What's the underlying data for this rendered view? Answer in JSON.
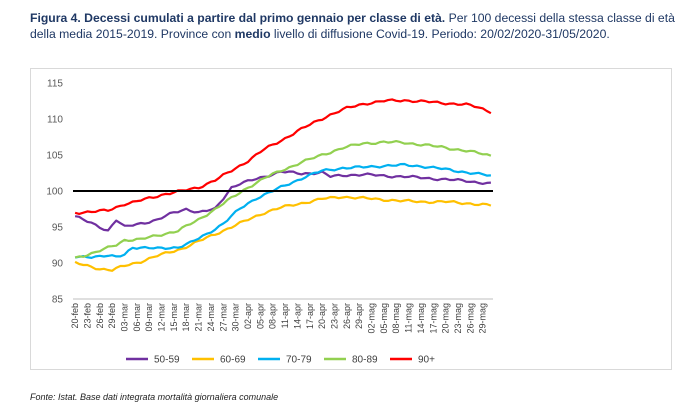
{
  "caption": {
    "figure_label": "Figura 4. Decessi cumulati a partire dal primo gennaio per classe di età.",
    "text_before_bold": " Per 100 decessi della stessa classe di età della media 2015-2019. Province con ",
    "bold_word": "medio",
    "text_after_bold": " livello di diffusione Covid-19. Periodo: 20/02/2020-31/05/2020."
  },
  "source": "Fonte: Istat. Base dati integrata mortalità giornaliera comunale",
  "chart_data": {
    "type": "line",
    "title": "",
    "xlabel": "",
    "ylabel": "",
    "ylim": [
      85,
      115
    ],
    "yticks": [
      85,
      90,
      95,
      100,
      105,
      110,
      115
    ],
    "x_tick_labels": [
      "20-feb",
      "23-feb",
      "26-feb",
      "29-feb",
      "03-mar",
      "06-mar",
      "09-mar",
      "12-mar",
      "15-mar",
      "18-mar",
      "21-mar",
      "24-mar",
      "27-mar",
      "30-mar",
      "02-apr",
      "05-apr",
      "08-apr",
      "11-apr",
      "14-apr",
      "17-apr",
      "20-apr",
      "23-apr",
      "26-apr",
      "29-apr",
      "02-mag",
      "05-mag",
      "08-mag",
      "11-mag",
      "14-mag",
      "17-mag",
      "20-mag",
      "23-mag",
      "26-mag",
      "29-mag"
    ],
    "n_days": 102,
    "grid": false,
    "reference_line": {
      "y": 100,
      "color": "#000000"
    },
    "legend_position": "bottom",
    "series": [
      {
        "name": "50-59",
        "color": "#7030a0",
        "keys": [
          [
            0,
            96.5
          ],
          [
            4,
            95.5
          ],
          [
            8,
            94.5
          ],
          [
            10,
            96
          ],
          [
            12,
            95
          ],
          [
            16,
            95.5
          ],
          [
            20,
            96
          ],
          [
            24,
            97
          ],
          [
            27,
            97.5
          ],
          [
            30,
            97
          ],
          [
            34,
            97.5
          ],
          [
            36,
            99
          ],
          [
            38,
            100.5
          ],
          [
            40,
            101
          ],
          [
            43,
            101.5
          ],
          [
            46,
            102
          ],
          [
            50,
            102.7
          ],
          [
            55,
            102.4
          ],
          [
            60,
            102.6
          ],
          [
            62,
            102
          ],
          [
            66,
            102.2
          ],
          [
            70,
            102.3
          ],
          [
            75,
            102.1
          ],
          [
            80,
            102
          ],
          [
            85,
            101.8
          ],
          [
            90,
            101.6
          ],
          [
            95,
            101.4
          ],
          [
            98,
            101.2
          ],
          [
            101,
            101
          ]
        ]
      },
      {
        "name": "60-69",
        "color": "#ffc000",
        "keys": [
          [
            0,
            90
          ],
          [
            3,
            89.6
          ],
          [
            6,
            89.2
          ],
          [
            9,
            89
          ],
          [
            12,
            89.6
          ],
          [
            16,
            90.2
          ],
          [
            20,
            91
          ],
          [
            26,
            92
          ],
          [
            30,
            93
          ],
          [
            34,
            94
          ],
          [
            38,
            95
          ],
          [
            42,
            96
          ],
          [
            46,
            97
          ],
          [
            50,
            97.7
          ],
          [
            55,
            98.3
          ],
          [
            60,
            98.9
          ],
          [
            65,
            99.2
          ],
          [
            70,
            99
          ],
          [
            75,
            98.8
          ],
          [
            80,
            98.6
          ],
          [
            85,
            98.5
          ],
          [
            90,
            98.5
          ],
          [
            95,
            98.3
          ],
          [
            101,
            98
          ]
        ]
      },
      {
        "name": "70-79",
        "color": "#00b0f0",
        "keys": [
          [
            0,
            90.8
          ],
          [
            8,
            91
          ],
          [
            10,
            90.8
          ],
          [
            12,
            91.2
          ],
          [
            14,
            92.2
          ],
          [
            20,
            92
          ],
          [
            25,
            92.2
          ],
          [
            28,
            92.8
          ],
          [
            32,
            94
          ],
          [
            36,
            95.5
          ],
          [
            40,
            97.5
          ],
          [
            44,
            99
          ],
          [
            48,
            100
          ],
          [
            52,
            101
          ],
          [
            56,
            102
          ],
          [
            60,
            102.8
          ],
          [
            65,
            103.2
          ],
          [
            70,
            103.3
          ],
          [
            75,
            103.5
          ],
          [
            80,
            103.6
          ],
          [
            85,
            103.4
          ],
          [
            90,
            103
          ],
          [
            95,
            102.6
          ],
          [
            101,
            102.1
          ]
        ]
      },
      {
        "name": "80-89",
        "color": "#92d050",
        "keys": [
          [
            0,
            90.7
          ],
          [
            5,
            91.5
          ],
          [
            10,
            92.5
          ],
          [
            12,
            93.2
          ],
          [
            16,
            93.3
          ],
          [
            20,
            93.8
          ],
          [
            25,
            94.5
          ],
          [
            30,
            96
          ],
          [
            34,
            97.5
          ],
          [
            38,
            99
          ],
          [
            42,
            100.5
          ],
          [
            46,
            101.8
          ],
          [
            50,
            102.8
          ],
          [
            55,
            104
          ],
          [
            60,
            105
          ],
          [
            65,
            106
          ],
          [
            70,
            106.6
          ],
          [
            75,
            106.8
          ],
          [
            80,
            106.7
          ],
          [
            85,
            106.4
          ],
          [
            90,
            106
          ],
          [
            95,
            105.6
          ],
          [
            101,
            104.9
          ]
        ]
      },
      {
        "name": "90+",
        "color": "#ff0000",
        "keys": [
          [
            0,
            97
          ],
          [
            4,
            97.1
          ],
          [
            8,
            97.3
          ],
          [
            12,
            98.2
          ],
          [
            14,
            98.4
          ],
          [
            18,
            99
          ],
          [
            22,
            99.6
          ],
          [
            26,
            100
          ],
          [
            30,
            100.5
          ],
          [
            34,
            101.5
          ],
          [
            38,
            102.8
          ],
          [
            42,
            104.2
          ],
          [
            46,
            105.8
          ],
          [
            50,
            107
          ],
          [
            54,
            108.3
          ],
          [
            58,
            109.5
          ],
          [
            62,
            110.6
          ],
          [
            66,
            111.5
          ],
          [
            70,
            112.1
          ],
          [
            75,
            112.5
          ],
          [
            80,
            112.6
          ],
          [
            85,
            112.4
          ],
          [
            90,
            112.2
          ],
          [
            95,
            112
          ],
          [
            98,
            111.6
          ],
          [
            101,
            111
          ]
        ]
      }
    ]
  }
}
